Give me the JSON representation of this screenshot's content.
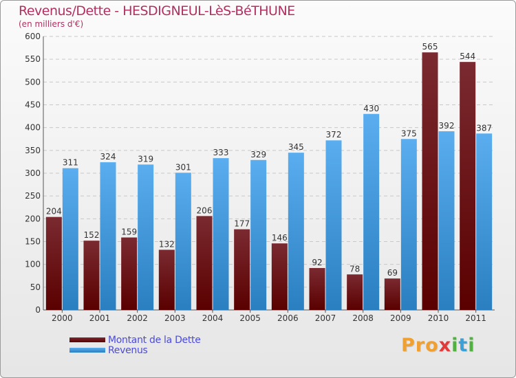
{
  "chart_title": "Revenus/Dette - HESDIGNEUL-LèS-BéTHUNE",
  "chart_subtitle": "(en milliers d'€)",
  "logo_text": "Proxiti",
  "colors": {
    "dette_top": "#7a2a30",
    "dette_bottom": "#5a0000",
    "revenus_top": "#5aaef0",
    "revenus_bottom": "#2a7fc0",
    "title": "#b03060",
    "legend_text": "#4a4ae0"
  },
  "chart_data": {
    "type": "bar",
    "categories": [
      "2000",
      "2001",
      "2002",
      "2003",
      "2004",
      "2005",
      "2006",
      "2007",
      "2008",
      "2009",
      "2010",
      "2011"
    ],
    "series": [
      {
        "name": "Montant de la Dette",
        "values": [
          204,
          152,
          159,
          132,
          206,
          177,
          146,
          92,
          78,
          69,
          565,
          544
        ]
      },
      {
        "name": "Revenus",
        "values": [
          311,
          324,
          319,
          301,
          333,
          329,
          345,
          372,
          430,
          375,
          392,
          387
        ]
      }
    ],
    "ylim": [
      0,
      600
    ],
    "yticks": [
      0,
      50,
      100,
      150,
      200,
      250,
      300,
      350,
      400,
      450,
      500,
      550,
      600
    ],
    "grid": true,
    "legend_position": "bottom-left"
  }
}
